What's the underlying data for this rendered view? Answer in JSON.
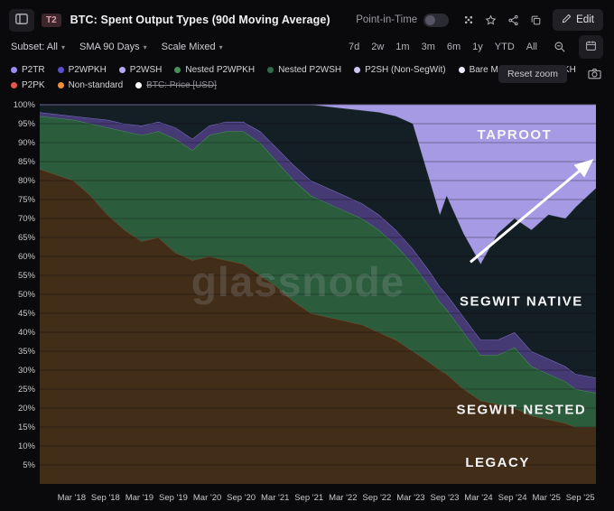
{
  "header": {
    "badge": "T2",
    "title": "BTC: Spent Output Types (90d Moving Average)",
    "point_in_time_label": "Point-in-Time",
    "edit_label": "Edit"
  },
  "toolbar": {
    "dropdowns": [
      {
        "id": "subset",
        "label": "Subset: All"
      },
      {
        "id": "sma",
        "label": "SMA 90 Days"
      },
      {
        "id": "scale",
        "label": "Scale Mixed"
      }
    ],
    "ranges": [
      "7d",
      "2w",
      "1m",
      "3m",
      "6m",
      "1y",
      "YTD",
      "All"
    ],
    "reset_zoom_label": "Reset zoom"
  },
  "legend": {
    "row1": [
      {
        "label": "P2TR",
        "color": "#9c8cf0"
      },
      {
        "label": "P2WPKH",
        "color": "#5a50c8"
      },
      {
        "label": "P2WSH",
        "color": "#b7aaf2"
      },
      {
        "label": "Nested P2WPKH",
        "color": "#46915a"
      },
      {
        "label": "Nested P2WSH",
        "color": "#2f6b4e"
      },
      {
        "label": "P2SH (Non-SegWit)",
        "color": "#cdc4f0"
      },
      {
        "label": "Bare MultiSig",
        "color": "#ece9f8"
      },
      {
        "label": "P2PKH",
        "color": "#9a6a38"
      }
    ],
    "row2": [
      {
        "label": "P2PK",
        "color": "#e2574b"
      },
      {
        "label": "Non-standard",
        "color": "#ef8f3e"
      },
      {
        "label": "BTC: Price [USD]",
        "color": "#ffffff",
        "struck": true
      }
    ]
  },
  "chart_data": {
    "type": "area",
    "stacked": true,
    "unit": "%",
    "title": "BTC: Spent Output Types (90d Moving Average)",
    "ylim": [
      0,
      100
    ],
    "x_domain": [
      2017.7,
      2025.9
    ],
    "y_ticks": [
      100,
      95,
      90,
      85,
      80,
      75,
      70,
      65,
      60,
      55,
      50,
      45,
      40,
      35,
      30,
      25,
      20,
      15,
      10,
      5
    ],
    "x_tick_labels": [
      "Mar '18",
      "Sep '18",
      "Mar '19",
      "Sep '19",
      "Mar '20",
      "Sep '20",
      "Mar '21",
      "Sep '21",
      "Mar '22",
      "Sep '22",
      "Mar '23",
      "Sep '23",
      "Mar '24",
      "Sep '24",
      "Mar '25",
      "Sep '25"
    ],
    "x_tick_years": [
      2018.17,
      2018.67,
      2019.17,
      2019.67,
      2020.17,
      2020.67,
      2021.17,
      2021.67,
      2022.17,
      2022.67,
      2023.17,
      2023.67,
      2024.17,
      2024.67,
      2025.17,
      2025.67
    ],
    "x_years": [
      2017.7,
      2018.2,
      2018.45,
      2018.7,
      2018.95,
      2019.2,
      2019.45,
      2019.7,
      2019.95,
      2020.2,
      2020.45,
      2020.7,
      2020.95,
      2021.2,
      2021.45,
      2021.7,
      2021.95,
      2022.2,
      2022.45,
      2022.7,
      2022.95,
      2023.2,
      2023.45,
      2023.6,
      2023.7,
      2023.95,
      2024.2,
      2024.45,
      2024.7,
      2024.95,
      2025.2,
      2025.45,
      2025.6,
      2025.9
    ],
    "series": [
      {
        "id": "p2pkh_legacy",
        "name": "Legacy (P2PKH)",
        "fill": "#422d19",
        "edge": "#7b5530",
        "values": [
          83,
          80,
          76,
          71,
          67,
          64,
          65,
          61,
          59,
          60,
          59,
          58,
          55,
          52,
          48,
          45,
          44,
          43,
          42,
          40,
          38,
          35,
          32,
          30,
          29,
          25,
          22,
          21,
          20,
          18,
          17,
          16,
          15,
          15
        ]
      },
      {
        "id": "nested_segwit",
        "name": "SegWit Nested (P2SH)",
        "fill": "#2b5c3c",
        "edge": "#4f9e62",
        "values": [
          14,
          16,
          19,
          23,
          26,
          28,
          28,
          30,
          29,
          32,
          34,
          35,
          35,
          33,
          32,
          31,
          30,
          29,
          28,
          27,
          25,
          23,
          20,
          18,
          17,
          15,
          12,
          13,
          16,
          13,
          12,
          11,
          10,
          9
        ]
      },
      {
        "id": "p2wsh",
        "name": "P2WSH",
        "fill": "#453a74",
        "edge": "#8d7fd8",
        "values": [
          1,
          1,
          1.5,
          2,
          2,
          2.5,
          2.5,
          3,
          3,
          2.5,
          2.5,
          2.5,
          3,
          3.5,
          4,
          4,
          4,
          4,
          4,
          4,
          4,
          4,
          4,
          4,
          4,
          4,
          4,
          4,
          4,
          4,
          4,
          4,
          4,
          4
        ]
      },
      {
        "id": "p2wpkh_native",
        "name": "SegWit Native (P2WPKH)",
        "fill": "#141e25",
        "edge": "#2a3e46",
        "values": [
          2,
          3,
          3.5,
          4,
          5,
          5.5,
          4.5,
          6,
          9,
          5.5,
          4.5,
          4.5,
          7,
          11.5,
          16,
          20,
          21.5,
          23,
          24.5,
          27,
          30,
          33,
          24,
          19,
          26,
          22,
          20,
          28,
          30,
          32,
          38,
          39,
          44,
          50
        ]
      },
      {
        "id": "p2tr_taproot",
        "name": "Taproot (P2TR)",
        "fill": "#a79ae4",
        "edge": "#b6aaf0",
        "values": [
          0,
          0,
          0,
          0,
          0,
          0,
          0,
          0,
          0,
          0,
          0,
          0,
          0,
          0,
          0,
          0,
          0.5,
          1,
          1.5,
          2,
          3,
          5,
          20,
          29,
          24,
          34,
          42,
          34,
          30,
          33,
          29,
          30,
          27,
          22
        ]
      }
    ],
    "annotations": [
      {
        "text": "TAPROOT",
        "year": 2024.7,
        "percent": 91
      },
      {
        "text": "SEGWIT NATIVE",
        "year": 2024.8,
        "percent": 47
      },
      {
        "text": "SEGWIT NESTED",
        "year": 2024.8,
        "percent": 18.5
      },
      {
        "text": "LEGACY",
        "year": 2024.45,
        "percent": 4.5
      }
    ],
    "arrow": {
      "from": [
        2024.05,
        58.5
      ],
      "to": [
        2025.82,
        85
      ]
    },
    "watermark": "glassnode"
  }
}
